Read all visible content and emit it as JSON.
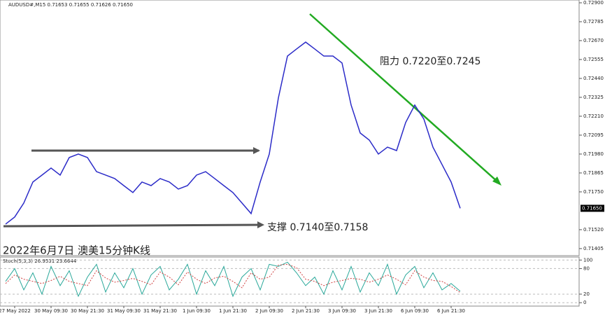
{
  "header": {
    "text": "AUDUSD#,M15  0.71653 0.71655 0.71626 0.71650"
  },
  "chart_data": [
    {
      "type": "line",
      "title": "2022年6月7日 澳美15分钟K线",
      "annotations": [
        "阻力 0.7220至0.7245",
        "支撑 0.7140至0.7158"
      ],
      "categories": [
        null,
        "27 May 2022",
        null,
        null,
        null,
        "30 May 09:30",
        null,
        null,
        null,
        "30 May 21:30",
        null,
        null,
        null,
        "31 May 09:30",
        null,
        null,
        null,
        "31 May 21:30",
        null,
        null,
        null,
        "1 Jun 09:30",
        null,
        null,
        null,
        "1 Jun 21:30",
        null,
        null,
        null,
        "2 Jun 09:30",
        null,
        null,
        null,
        "2 Jun 21:30",
        null,
        null,
        null,
        "3 Jun 09:30",
        null,
        null,
        null,
        "3 Jun 21:30",
        null,
        null,
        null,
        "6 Jun 09:30",
        null,
        null,
        null,
        "6 Jun 21:30",
        null
      ],
      "series": [
        {
          "color": "#2b2bc8",
          "values": [
            0.71554,
            0.71597,
            0.71682,
            0.7181,
            0.71852,
            0.71895,
            0.71852,
            0.71959,
            0.7198,
            0.71959,
            0.71873,
            0.71852,
            0.71831,
            0.71788,
            0.71746,
            0.7181,
            0.71788,
            0.71831,
            0.7181,
            0.71767,
            0.71788,
            0.71852,
            0.71873,
            0.71831,
            0.71788,
            0.71746,
            0.71682,
            0.71618,
            0.7181,
            0.7198,
            0.72321,
            0.72576,
            0.72619,
            0.72661,
            0.72619,
            0.72576,
            0.72576,
            0.72534,
            0.72278,
            0.72108,
            0.72065,
            0.7198,
            0.72022,
            0.72001,
            0.72172,
            0.72278,
            0.72193,
            0.72022,
            0.71916,
            0.7181,
            0.7165
          ]
        }
      ],
      "ylim": [
        0.71362,
        0.72917
      ],
      "yticks": [
        {
          "value": 0.729,
          "label": "0.72900"
        },
        {
          "value": 0.72785,
          "label": "0.72785"
        },
        {
          "value": 0.7267,
          "label": "0.72670"
        },
        {
          "value": 0.72555,
          "label": "0.72555"
        },
        {
          "value": 0.7244,
          "label": "0.72440"
        },
        {
          "value": 0.72325,
          "label": "0.72325"
        },
        {
          "value": 0.7221,
          "label": "0.72210"
        },
        {
          "value": 0.72095,
          "label": "0.72095"
        },
        {
          "value": 0.7198,
          "label": "0.71980"
        },
        {
          "value": 0.71865,
          "label": "0.71865"
        },
        {
          "value": 0.7175,
          "label": "0.71750"
        },
        {
          "value": 0.7152,
          "label": "0.71520"
        },
        {
          "value": 0.71405,
          "label": "0.71405"
        }
      ],
      "last_price": {
        "value": 0.7165,
        "label": "0.71650"
      }
    },
    {
      "type": "line",
      "title": "Stoch(5,3,3) 26.9531 23.6644",
      "series": [
        {
          "color": "#2aa89a",
          "values": [
            50,
            80,
            30,
            70,
            20,
            85,
            40,
            75,
            15,
            60,
            90,
            25,
            70,
            35,
            80,
            20,
            65,
            85,
            30,
            55,
            90,
            20,
            75,
            40,
            85,
            15,
            60,
            80,
            30,
            90,
            85,
            95,
            70,
            40,
            60,
            20,
            75,
            30,
            85,
            25,
            70,
            40,
            90,
            20,
            65,
            85,
            35,
            70,
            30,
            45,
            26.9531
          ]
        },
        {
          "color": "#d04040",
          "values": [
            45,
            65,
            55,
            50,
            45,
            52,
            62,
            50,
            45,
            40,
            75,
            58,
            48,
            52,
            57,
            50,
            42,
            72,
            60,
            42,
            72,
            55,
            45,
            58,
            62,
            50,
            35,
            70,
            55,
            60,
            88,
            90,
            82,
            55,
            50,
            40,
            48,
            52,
            57,
            55,
            48,
            55,
            65,
            55,
            42,
            75,
            60,
            52,
            50,
            38,
            23.6644
          ]
        }
      ],
      "ylim": [
        -8,
        107
      ],
      "yticks": [
        0,
        20,
        80,
        100
      ]
    }
  ]
}
